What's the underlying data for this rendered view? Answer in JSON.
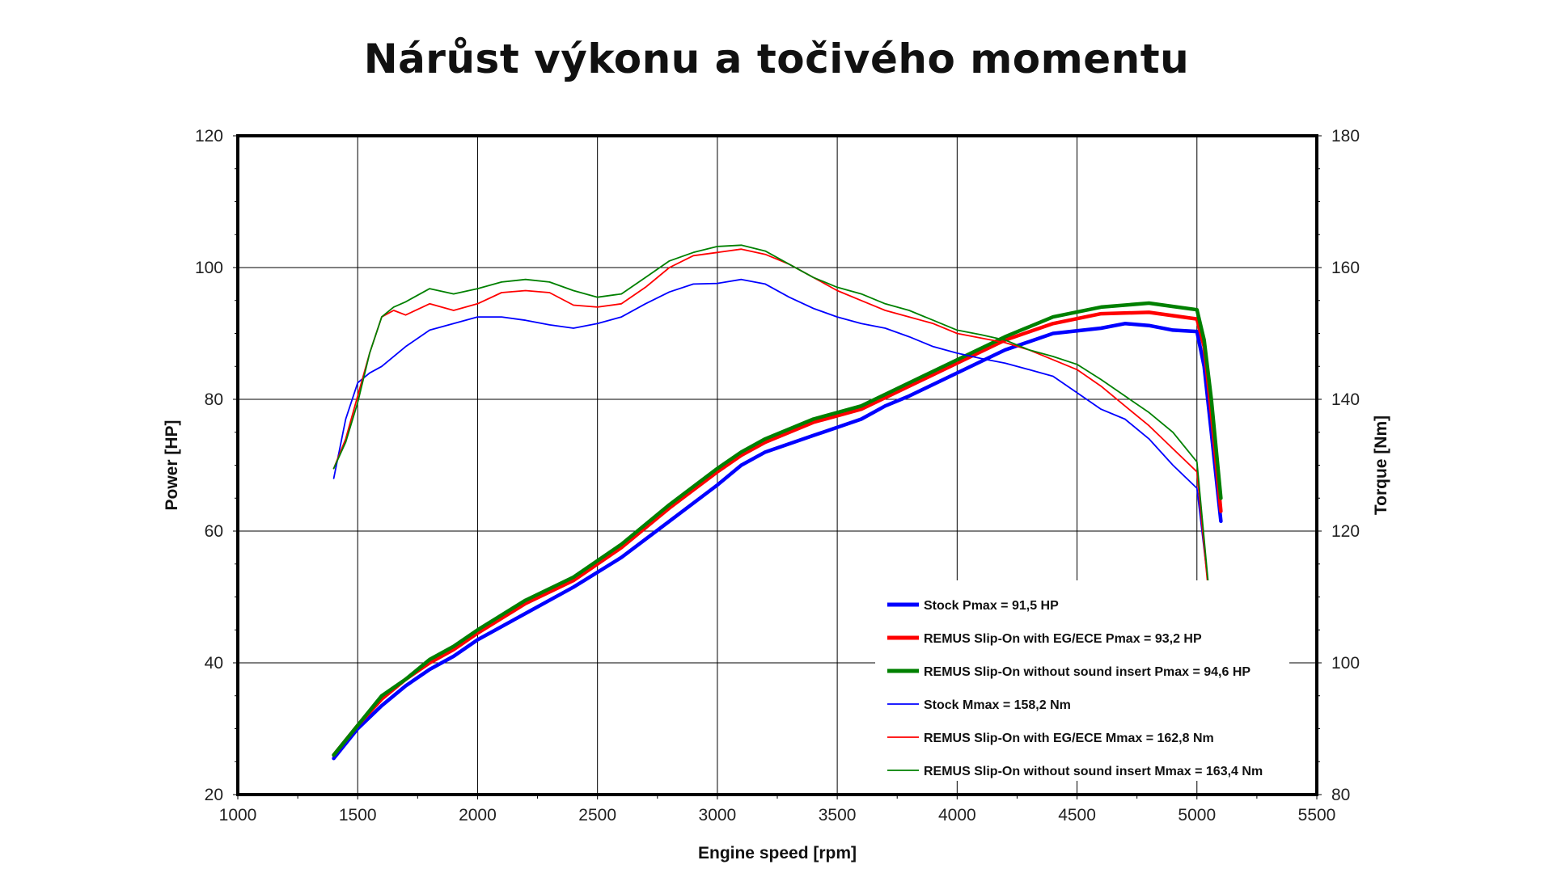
{
  "title": "Nárůst výkonu a točivého momentu",
  "colors": {
    "stock": "#0000ff",
    "eg_ece": "#ff0000",
    "no_insert": "#008000"
  },
  "chart_data": {
    "type": "line",
    "title": "Nárůst výkonu a točivého momentu",
    "xlabel": "Engine speed [rpm]",
    "ylabel": "Power [HP]",
    "y2label": "Torque [Nm]",
    "xlim": [
      1000,
      5500
    ],
    "ylim": [
      20,
      120
    ],
    "y2lim": [
      80,
      180
    ],
    "x_ticks": [
      "1000",
      "1500",
      "2000",
      "2500",
      "3000",
      "3500",
      "4000",
      "4500",
      "5000",
      "5500"
    ],
    "y_ticks": [
      "20",
      "40",
      "60",
      "80",
      "100",
      "120"
    ],
    "y2_ticks": [
      "80",
      "100",
      "120",
      "140",
      "160",
      "180"
    ],
    "grid": true,
    "legend_position": "bottom-right",
    "series": [
      {
        "name": "Stock Pmax = 91,5 HP",
        "axis": "left",
        "color": "#0000ff",
        "weight": "thick",
        "points": [
          [
            1400,
            25.5
          ],
          [
            1500,
            30
          ],
          [
            1600,
            33.5
          ],
          [
            1700,
            36.5
          ],
          [
            1800,
            39
          ],
          [
            1900,
            41
          ],
          [
            2000,
            43.5
          ],
          [
            2200,
            47.5
          ],
          [
            2400,
            51.5
          ],
          [
            2600,
            56
          ],
          [
            2800,
            61.5
          ],
          [
            3000,
            67
          ],
          [
            3100,
            70
          ],
          [
            3200,
            72
          ],
          [
            3400,
            74.5
          ],
          [
            3600,
            77
          ],
          [
            3700,
            79
          ],
          [
            3800,
            80.5
          ],
          [
            4000,
            84
          ],
          [
            4200,
            87.5
          ],
          [
            4400,
            90
          ],
          [
            4600,
            90.8
          ],
          [
            4700,
            91.5
          ],
          [
            4800,
            91.2
          ],
          [
            4900,
            90.5
          ],
          [
            5000,
            90.3
          ],
          [
            5030,
            85
          ],
          [
            5060,
            75
          ],
          [
            5100,
            61.5
          ]
        ]
      },
      {
        "name": "REMUS Slip-On with EG/ECE Pmax = 93,2 HP",
        "axis": "left",
        "color": "#ff0000",
        "weight": "thick",
        "points": [
          [
            1400,
            26
          ],
          [
            1500,
            30.5
          ],
          [
            1600,
            34.5
          ],
          [
            1700,
            37.5
          ],
          [
            1800,
            40
          ],
          [
            1900,
            42
          ],
          [
            2000,
            44.5
          ],
          [
            2200,
            49
          ],
          [
            2400,
            52.5
          ],
          [
            2600,
            57.5
          ],
          [
            2800,
            63.5
          ],
          [
            3000,
            69
          ],
          [
            3100,
            71.5
          ],
          [
            3200,
            73.5
          ],
          [
            3400,
            76.5
          ],
          [
            3600,
            78.5
          ],
          [
            3800,
            82
          ],
          [
            4000,
            85.5
          ],
          [
            4200,
            89
          ],
          [
            4400,
            91.5
          ],
          [
            4600,
            93
          ],
          [
            4800,
            93.2
          ],
          [
            4900,
            92.7
          ],
          [
            5000,
            92.2
          ],
          [
            5030,
            88
          ],
          [
            5060,
            78
          ],
          [
            5100,
            63
          ]
        ]
      },
      {
        "name": "REMUS Slip-On without sound insert Pmax = 94,6 HP",
        "axis": "left",
        "color": "#008000",
        "weight": "thick",
        "points": [
          [
            1400,
            26
          ],
          [
            1500,
            30.5
          ],
          [
            1600,
            35
          ],
          [
            1700,
            37.5
          ],
          [
            1800,
            40.5
          ],
          [
            1900,
            42.5
          ],
          [
            2000,
            45
          ],
          [
            2200,
            49.5
          ],
          [
            2400,
            53
          ],
          [
            2600,
            58
          ],
          [
            2800,
            64
          ],
          [
            3000,
            69.5
          ],
          [
            3100,
            72
          ],
          [
            3200,
            74
          ],
          [
            3400,
            77
          ],
          [
            3600,
            79
          ],
          [
            3800,
            82.5
          ],
          [
            4000,
            86
          ],
          [
            4200,
            89.5
          ],
          [
            4400,
            92.5
          ],
          [
            4600,
            94
          ],
          [
            4800,
            94.6
          ],
          [
            4900,
            94.1
          ],
          [
            5000,
            93.6
          ],
          [
            5030,
            89
          ],
          [
            5060,
            80
          ],
          [
            5100,
            65
          ]
        ]
      },
      {
        "name": "Stock Mmax = 158,2 Nm",
        "axis": "right",
        "color": "#0000ff",
        "weight": "thin",
        "points": [
          [
            1400,
            128
          ],
          [
            1450,
            137
          ],
          [
            1500,
            142.5
          ],
          [
            1550,
            144
          ],
          [
            1600,
            145
          ],
          [
            1700,
            148
          ],
          [
            1800,
            150.5
          ],
          [
            1900,
            151.5
          ],
          [
            2000,
            152.5
          ],
          [
            2100,
            152.5
          ],
          [
            2200,
            152
          ],
          [
            2300,
            151.3
          ],
          [
            2400,
            150.8
          ],
          [
            2500,
            151.5
          ],
          [
            2600,
            152.5
          ],
          [
            2700,
            154.5
          ],
          [
            2800,
            156.3
          ],
          [
            2900,
            157.5
          ],
          [
            3000,
            157.6
          ],
          [
            3100,
            158.2
          ],
          [
            3200,
            157.5
          ],
          [
            3300,
            155.5
          ],
          [
            3400,
            153.8
          ],
          [
            3500,
            152.5
          ],
          [
            3600,
            151.5
          ],
          [
            3700,
            150.8
          ],
          [
            3800,
            149.5
          ],
          [
            3900,
            148
          ],
          [
            4000,
            147
          ],
          [
            4100,
            146.2
          ],
          [
            4200,
            145.5
          ],
          [
            4300,
            144.5
          ],
          [
            4400,
            143.5
          ],
          [
            4500,
            141
          ],
          [
            4600,
            138.5
          ],
          [
            4700,
            137
          ],
          [
            4800,
            134
          ],
          [
            4900,
            130
          ],
          [
            5000,
            126.5
          ],
          [
            5050,
            111
          ]
        ]
      },
      {
        "name": "REMUS Slip-On with EG/ECE Mmax = 162,8 Nm",
        "axis": "right",
        "color": "#ff0000",
        "weight": "thin",
        "points": [
          [
            1400,
            129.5
          ],
          [
            1450,
            134
          ],
          [
            1500,
            140.5
          ],
          [
            1550,
            147
          ],
          [
            1600,
            152.5
          ],
          [
            1650,
            153.5
          ],
          [
            1700,
            152.8
          ],
          [
            1800,
            154.5
          ],
          [
            1900,
            153.5
          ],
          [
            2000,
            154.5
          ],
          [
            2100,
            156.2
          ],
          [
            2200,
            156.5
          ],
          [
            2300,
            156.2
          ],
          [
            2400,
            154.3
          ],
          [
            2500,
            154
          ],
          [
            2600,
            154.5
          ],
          [
            2700,
            157
          ],
          [
            2800,
            160
          ],
          [
            2900,
            161.8
          ],
          [
            3000,
            162.3
          ],
          [
            3100,
            162.8
          ],
          [
            3200,
            162
          ],
          [
            3300,
            160.5
          ],
          [
            3400,
            158.5
          ],
          [
            3500,
            156.5
          ],
          [
            3600,
            155
          ],
          [
            3700,
            153.5
          ],
          [
            3800,
            152.5
          ],
          [
            3900,
            151.5
          ],
          [
            4000,
            150
          ],
          [
            4100,
            149.3
          ],
          [
            4200,
            148.6
          ],
          [
            4300,
            147.5
          ],
          [
            4400,
            146
          ],
          [
            4500,
            144.5
          ],
          [
            4600,
            142
          ],
          [
            4700,
            139
          ],
          [
            4800,
            136
          ],
          [
            4900,
            132.5
          ],
          [
            5000,
            129
          ],
          [
            5050,
            110
          ]
        ]
      },
      {
        "name": "REMUS Slip-On without sound insert Mmax = 163,4 Nm",
        "axis": "right",
        "color": "#008000",
        "weight": "thin",
        "points": [
          [
            1400,
            129.5
          ],
          [
            1450,
            133.5
          ],
          [
            1500,
            139.5
          ],
          [
            1550,
            147
          ],
          [
            1600,
            152.5
          ],
          [
            1650,
            154
          ],
          [
            1700,
            154.8
          ],
          [
            1800,
            156.8
          ],
          [
            1900,
            156
          ],
          [
            2000,
            156.8
          ],
          [
            2100,
            157.8
          ],
          [
            2200,
            158.2
          ],
          [
            2300,
            157.8
          ],
          [
            2400,
            156.5
          ],
          [
            2500,
            155.5
          ],
          [
            2600,
            156
          ],
          [
            2700,
            158.5
          ],
          [
            2800,
            161
          ],
          [
            2900,
            162.3
          ],
          [
            3000,
            163.2
          ],
          [
            3100,
            163.4
          ],
          [
            3200,
            162.5
          ],
          [
            3300,
            160.5
          ],
          [
            3400,
            158.5
          ],
          [
            3500,
            157
          ],
          [
            3600,
            156
          ],
          [
            3700,
            154.5
          ],
          [
            3800,
            153.5
          ],
          [
            3900,
            152
          ],
          [
            4000,
            150.5
          ],
          [
            4100,
            149.8
          ],
          [
            4200,
            149
          ],
          [
            4300,
            147.5
          ],
          [
            4400,
            146.5
          ],
          [
            4500,
            145.3
          ],
          [
            4600,
            143
          ],
          [
            4700,
            140.5
          ],
          [
            4800,
            138
          ],
          [
            4900,
            135
          ],
          [
            5000,
            130.5
          ],
          [
            5050,
            111
          ]
        ]
      }
    ]
  }
}
